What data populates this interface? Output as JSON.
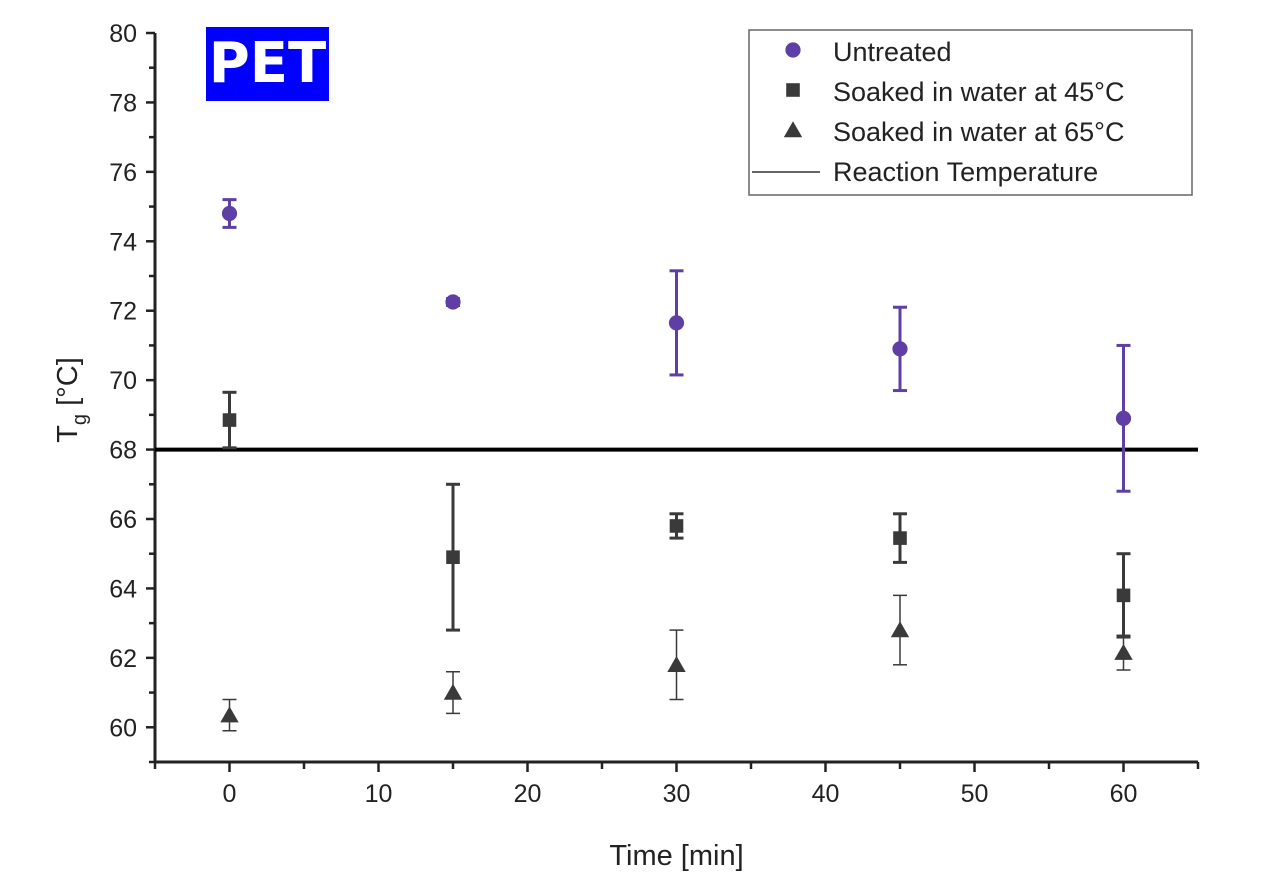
{
  "chart_data": {
    "type": "scatter",
    "title": "",
    "badge": "PET",
    "xlabel": "Time [min]",
    "ylabel_main": "T",
    "ylabel_sub": "g",
    "ylabel_unit": " [°C]",
    "xlim": [
      -5,
      65
    ],
    "ylim": [
      59,
      80
    ],
    "xticks": [
      0,
      10,
      20,
      30,
      40,
      50,
      60
    ],
    "yticks": [
      60,
      62,
      64,
      66,
      68,
      70,
      72,
      74,
      76,
      78,
      80
    ],
    "grid": false,
    "legend_position": "top-right",
    "x": [
      0,
      15,
      30,
      45,
      60
    ],
    "series": [
      {
        "name": "Untreated",
        "marker": "circle",
        "color": "#5f3fa6",
        "values": [
          74.8,
          72.25,
          71.65,
          70.9,
          68.9
        ],
        "errors": [
          0.4,
          0.1,
          1.5,
          1.2,
          2.1
        ]
      },
      {
        "name": "Soaked in water at 45°C",
        "marker": "square",
        "color": "#3a3a3a",
        "values": [
          68.85,
          64.9,
          65.8,
          65.45,
          63.8
        ],
        "errors": [
          0.8,
          2.1,
          0.35,
          0.7,
          1.2
        ]
      },
      {
        "name": "Soaked in water at 65°C",
        "marker": "triangle",
        "color": "#3a3a3a",
        "values": [
          60.35,
          61.0,
          61.8,
          62.8,
          62.15
        ],
        "errors": [
          0.45,
          0.6,
          1.0,
          1.0,
          0.5
        ]
      }
    ],
    "reference_line": {
      "name": "Reaction Temperature",
      "y": 68,
      "color": "#000000"
    }
  }
}
